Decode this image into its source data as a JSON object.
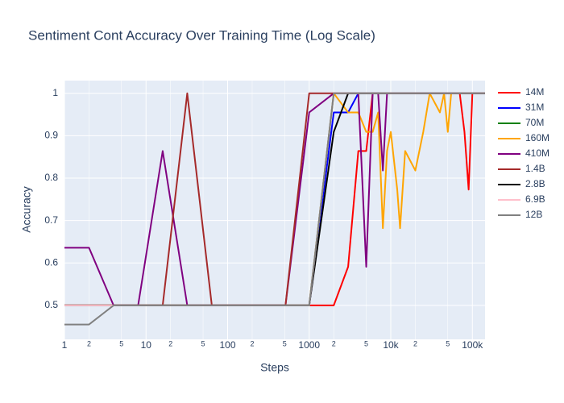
{
  "chart_data": {
    "type": "line",
    "title": "Sentiment Cont Accuracy Over Training Time (Log Scale)",
    "x_label": "Steps",
    "y_label": "Accuracy",
    "log_x": true,
    "grid": true,
    "x": [
      1,
      2,
      4,
      8,
      16,
      32,
      64,
      128,
      256,
      512,
      1000,
      2000,
      3000,
      4000,
      5000,
      6000,
      7000,
      8000,
      9000,
      10000,
      12000,
      13000,
      15000,
      20000,
      25000,
      30000,
      40000,
      45000,
      50000,
      55000,
      60000,
      70000,
      80000,
      90000,
      100000,
      110000,
      143000
    ],
    "xlim": [
      1,
      143000
    ],
    "xticks": [
      1,
      2,
      5,
      10,
      {
        "value": 20,
        "label": "2"
      },
      {
        "value": 50,
        "label": "5"
      },
      100,
      {
        "value": 200,
        "label": "2"
      },
      {
        "value": 500,
        "label": "5"
      },
      1000,
      {
        "value": 2000,
        "label": "2"
      },
      {
        "value": 5000,
        "label": "5"
      },
      {
        "value": 10000,
        "label": "10k"
      },
      {
        "value": 20000,
        "label": "2"
      },
      {
        "value": 50000,
        "label": "5"
      },
      {
        "value": 100000,
        "label": "100k"
      }
    ],
    "ylim": [
      0.42,
      1.03
    ],
    "yticks": [
      0.5,
      0.6,
      0.7,
      0.8,
      0.9,
      1
    ],
    "series": [
      {
        "name": "14M",
        "color": "#ff0000",
        "values": [
          0.5,
          0.5,
          0.5,
          0.5,
          0.5,
          0.5,
          0.5,
          0.5,
          0.5,
          0.5,
          0.5,
          0.5,
          0.591,
          0.864,
          0.864,
          1,
          1,
          1,
          1,
          1,
          1,
          1,
          1,
          1,
          1,
          1,
          1,
          1,
          1,
          1,
          1,
          1,
          0.909,
          0.773,
          1,
          1,
          1
        ]
      },
      {
        "name": "31M",
        "color": "#0000ff",
        "values": [
          0.5,
          0.5,
          0.5,
          0.5,
          0.5,
          0.5,
          0.5,
          0.5,
          0.5,
          0.5,
          0.5,
          0.955,
          0.955,
          1,
          1,
          1,
          1,
          1,
          1,
          1,
          1,
          1,
          1,
          1,
          1,
          1,
          1,
          1,
          1,
          1,
          1,
          1,
          1,
          1,
          1,
          1,
          1
        ]
      },
      {
        "name": "70M",
        "color": "#008000",
        "values": [
          0.5,
          0.5,
          0.5,
          0.5,
          0.5,
          0.5,
          0.5,
          0.5,
          0.5,
          0.5,
          0.5,
          1,
          1,
          1,
          1,
          1,
          1,
          1,
          1,
          1,
          1,
          1,
          1,
          1,
          1,
          1,
          1,
          1,
          1,
          1,
          1,
          1,
          1,
          1,
          1,
          1,
          1
        ]
      },
      {
        "name": "160M",
        "color": "#ffa500",
        "values": [
          0.5,
          0.5,
          0.5,
          0.5,
          0.5,
          0.5,
          0.5,
          0.5,
          0.5,
          0.5,
          0.5,
          1,
          0.955,
          0.955,
          0.909,
          0.909,
          0.955,
          0.682,
          0.864,
          0.909,
          0.773,
          0.682,
          0.864,
          0.818,
          0.909,
          1,
          0.955,
          1,
          0.909,
          1,
          1,
          1,
          1,
          1,
          1,
          1,
          1
        ]
      },
      {
        "name": "410M",
        "color": "#800080",
        "values": [
          0.636,
          0.636,
          0.5,
          0.5,
          0.864,
          0.5,
          0.5,
          0.5,
          0.5,
          0.5,
          0.955,
          1,
          1,
          1,
          0.591,
          1,
          1,
          0.818,
          1,
          1,
          1,
          1,
          1,
          1,
          1,
          1,
          1,
          1,
          1,
          1,
          1,
          1,
          1,
          1,
          1,
          1,
          1
        ]
      },
      {
        "name": "1.4B",
        "color": "#a52a2a",
        "values": [
          0.5,
          0.5,
          0.5,
          0.5,
          0.5,
          1,
          0.5,
          0.5,
          0.5,
          0.5,
          1,
          1,
          1,
          1,
          1,
          1,
          1,
          1,
          1,
          1,
          1,
          1,
          1,
          1,
          1,
          1,
          1,
          1,
          1,
          1,
          1,
          1,
          1,
          1,
          1,
          1,
          1
        ]
      },
      {
        "name": "2.8B",
        "color": "#000000",
        "values": [
          0.5,
          0.5,
          0.5,
          0.5,
          0.5,
          0.5,
          0.5,
          0.5,
          0.5,
          0.5,
          0.5,
          0.909,
          1,
          1,
          1,
          1,
          1,
          1,
          1,
          1,
          1,
          1,
          1,
          1,
          1,
          1,
          1,
          1,
          1,
          1,
          1,
          1,
          1,
          1,
          1,
          1,
          1
        ]
      },
      {
        "name": "6.9B",
        "color": "#ffc0cb",
        "values": [
          0.5,
          0.5,
          0.5,
          0.5,
          0.5,
          0.5,
          0.5,
          0.5,
          0.5,
          0.5,
          0.5,
          1,
          1,
          1,
          1,
          1,
          1,
          1,
          1,
          1,
          1,
          1,
          1,
          1,
          1,
          1,
          1,
          1,
          1,
          1,
          1,
          1,
          1,
          1,
          1,
          1,
          1
        ]
      },
      {
        "name": "12B",
        "color": "#808080",
        "values": [
          0.455,
          0.455,
          0.5,
          0.5,
          0.5,
          0.5,
          0.5,
          0.5,
          0.5,
          0.5,
          0.5,
          1,
          1,
          1,
          1,
          1,
          1,
          1,
          1,
          1,
          1,
          1,
          1,
          1,
          1,
          1,
          1,
          1,
          1,
          1,
          1,
          1,
          1,
          1,
          1,
          1,
          1
        ]
      }
    ]
  }
}
